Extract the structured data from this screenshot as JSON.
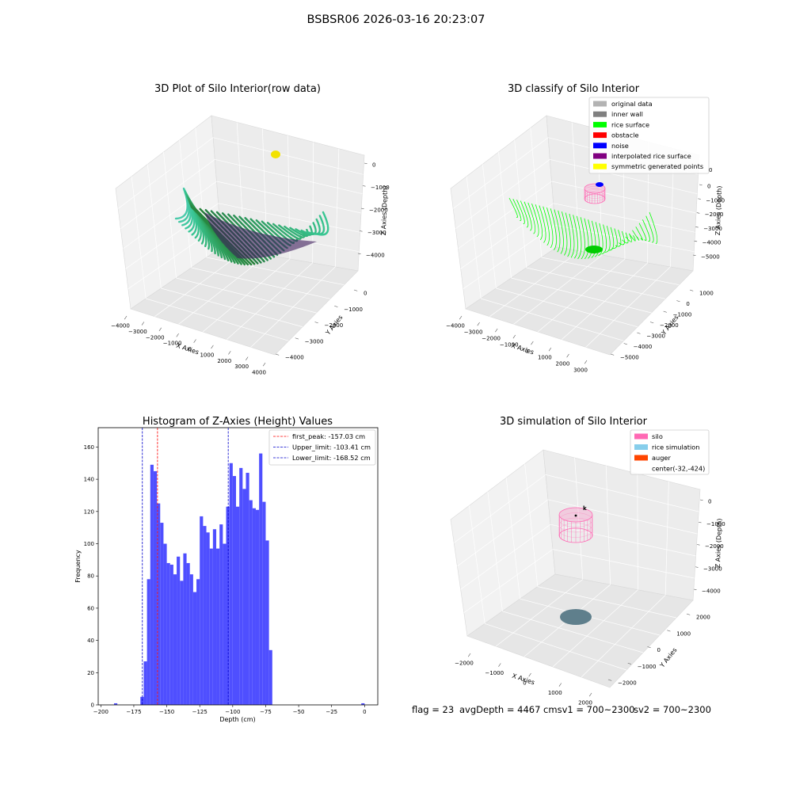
{
  "suptitle": "BSBSR06 2026-03-16 20:23:07",
  "footer": {
    "flag": "flag = 23",
    "avg": "avgDepth = 4467 cmsv1 = 700~2300",
    "sv2": "sv2 = 700~2300"
  },
  "colors": {
    "hist_bar": "#4b4bff",
    "first_peak": "#ff0000",
    "limits": "#0000cc",
    "rice_surface": "#00ff00",
    "noise": "#0000ff",
    "silo": "#ff69b4",
    "rice_simulation": "#87ceeb",
    "auger": "#ff4500"
  },
  "panels": {
    "raw": {
      "title": "3D Plot of Silo Interior(row data)",
      "xlabel": "X Axies",
      "ylabel": "Y Axies",
      "zlabel": "Z Axies (Depth)",
      "xticks": [
        "−4000",
        "−3000",
        "−2000",
        "−1000",
        "0",
        "1000",
        "2000",
        "3000",
        "4000"
      ],
      "yticks": [
        "0",
        "−1000",
        "−2000",
        "−3000",
        "−4000"
      ],
      "zticks": [
        "0",
        "−1000",
        "−2000",
        "−3000",
        "−4000"
      ]
    },
    "classify": {
      "title": "3D classify of Silo Interior",
      "xlabel": "X Axies",
      "ylabel": "Y Axies",
      "zlabel": "Z Axies (Depth)",
      "xticks": [
        "−4000",
        "−3000",
        "−2000",
        "−1000",
        "0",
        "1000",
        "2000",
        "3000"
      ],
      "yticks": [
        "1000",
        "0",
        "−1000",
        "−2000",
        "−3000",
        "−4000",
        "−5000"
      ],
      "zticks": [
        "0",
        "−1000",
        "−2000",
        "−3000",
        "−4000",
        "−5000"
      ],
      "legend": [
        {
          "label": "original data",
          "color": "#b3b3b3"
        },
        {
          "label": "inner wall",
          "color": "#808080"
        },
        {
          "label": "rice surface",
          "color": "#00ff00"
        },
        {
          "label": "obstacle",
          "color": "#ff0000"
        },
        {
          "label": "noise",
          "color": "#0000ff"
        },
        {
          "label": "interpolated rice surface",
          "color": "#800080"
        },
        {
          "label": "symmetric generated points",
          "color": "#ffff00"
        }
      ],
      "z_extra_tick": "0"
    },
    "simulation": {
      "title": "3D simulation of Silo Interior",
      "xlabel": "X Axies",
      "ylabel": "Y Axies",
      "zlabel": "Z Axies (Depth)",
      "xticks": [
        "−2000",
        "−1000",
        "0",
        "1000",
        "2000"
      ],
      "yticks": [
        "2000",
        "1000",
        "0",
        "−1000",
        "−2000"
      ],
      "zticks": [
        "0",
        "−1000",
        "−2000",
        "−3000",
        "−4000"
      ],
      "legend": [
        {
          "label": "silo",
          "color": "#ff69b4"
        },
        {
          "label": "rice simulation",
          "color": "#87ceeb"
        },
        {
          "label": "auger",
          "color": "#ff4500"
        },
        {
          "label": "center(-32,-424)",
          "color": ""
        }
      ],
      "marker": "k"
    }
  },
  "chart_data": {
    "type": "bar",
    "title": "Histogram of Z-Axies (Height) Values",
    "xlabel": "Depth (cm)",
    "ylabel": "Frequency",
    "xlim": [
      -202,
      10
    ],
    "ylim": [
      0,
      172
    ],
    "xticks": [
      -200,
      -175,
      -150,
      -125,
      -100,
      -75,
      -50,
      -25,
      0
    ],
    "yticks": [
      0,
      20,
      40,
      60,
      80,
      100,
      120,
      140,
      160
    ],
    "bin_width": 2.5,
    "bins": [
      {
        "x0": -190,
        "value": 1
      },
      {
        "x0": -170,
        "value": 5
      },
      {
        "x0": -167.5,
        "value": 27
      },
      {
        "x0": -165,
        "value": 78
      },
      {
        "x0": -162.5,
        "value": 149
      },
      {
        "x0": -160,
        "value": 145
      },
      {
        "x0": -157.5,
        "value": 125
      },
      {
        "x0": -155,
        "value": 113
      },
      {
        "x0": -152.5,
        "value": 100
      },
      {
        "x0": -150,
        "value": 88
      },
      {
        "x0": -147.5,
        "value": 87
      },
      {
        "x0": -145,
        "value": 81
      },
      {
        "x0": -142.5,
        "value": 92
      },
      {
        "x0": -140,
        "value": 77
      },
      {
        "x0": -137.5,
        "value": 94
      },
      {
        "x0": -135,
        "value": 88
      },
      {
        "x0": -132.5,
        "value": 81
      },
      {
        "x0": -130,
        "value": 70
      },
      {
        "x0": -127.5,
        "value": 78
      },
      {
        "x0": -125,
        "value": 117
      },
      {
        "x0": -122.5,
        "value": 111
      },
      {
        "x0": -120,
        "value": 107
      },
      {
        "x0": -117.5,
        "value": 97
      },
      {
        "x0": -115,
        "value": 109
      },
      {
        "x0": -112.5,
        "value": 97
      },
      {
        "x0": -110,
        "value": 112
      },
      {
        "x0": -107.5,
        "value": 100
      },
      {
        "x0": -105,
        "value": 123
      },
      {
        "x0": -102.5,
        "value": 150
      },
      {
        "x0": -100,
        "value": 142
      },
      {
        "x0": -97.5,
        "value": 123
      },
      {
        "x0": -95,
        "value": 147
      },
      {
        "x0": -92.5,
        "value": 134
      },
      {
        "x0": -90,
        "value": 144
      },
      {
        "x0": -87.5,
        "value": 127
      },
      {
        "x0": -85,
        "value": 122
      },
      {
        "x0": -82.5,
        "value": 121
      },
      {
        "x0": -80,
        "value": 156
      },
      {
        "x0": -77.5,
        "value": 126
      },
      {
        "x0": -75,
        "value": 102
      },
      {
        "x0": -72.5,
        "value": 34
      },
      {
        "x0": -2.5,
        "value": 1
      }
    ],
    "vlines": [
      {
        "name": "first_peak: -157.03 cm",
        "x": -157.03,
        "color": "#ff0000"
      },
      {
        "name": "Upper_limit: -103.41 cm",
        "x": -103.41,
        "color": "#0000cc"
      },
      {
        "name": "Lower_limit: -168.52 cm",
        "x": -168.52,
        "color": "#0000cc"
      }
    ],
    "legend_position": "top-right"
  }
}
